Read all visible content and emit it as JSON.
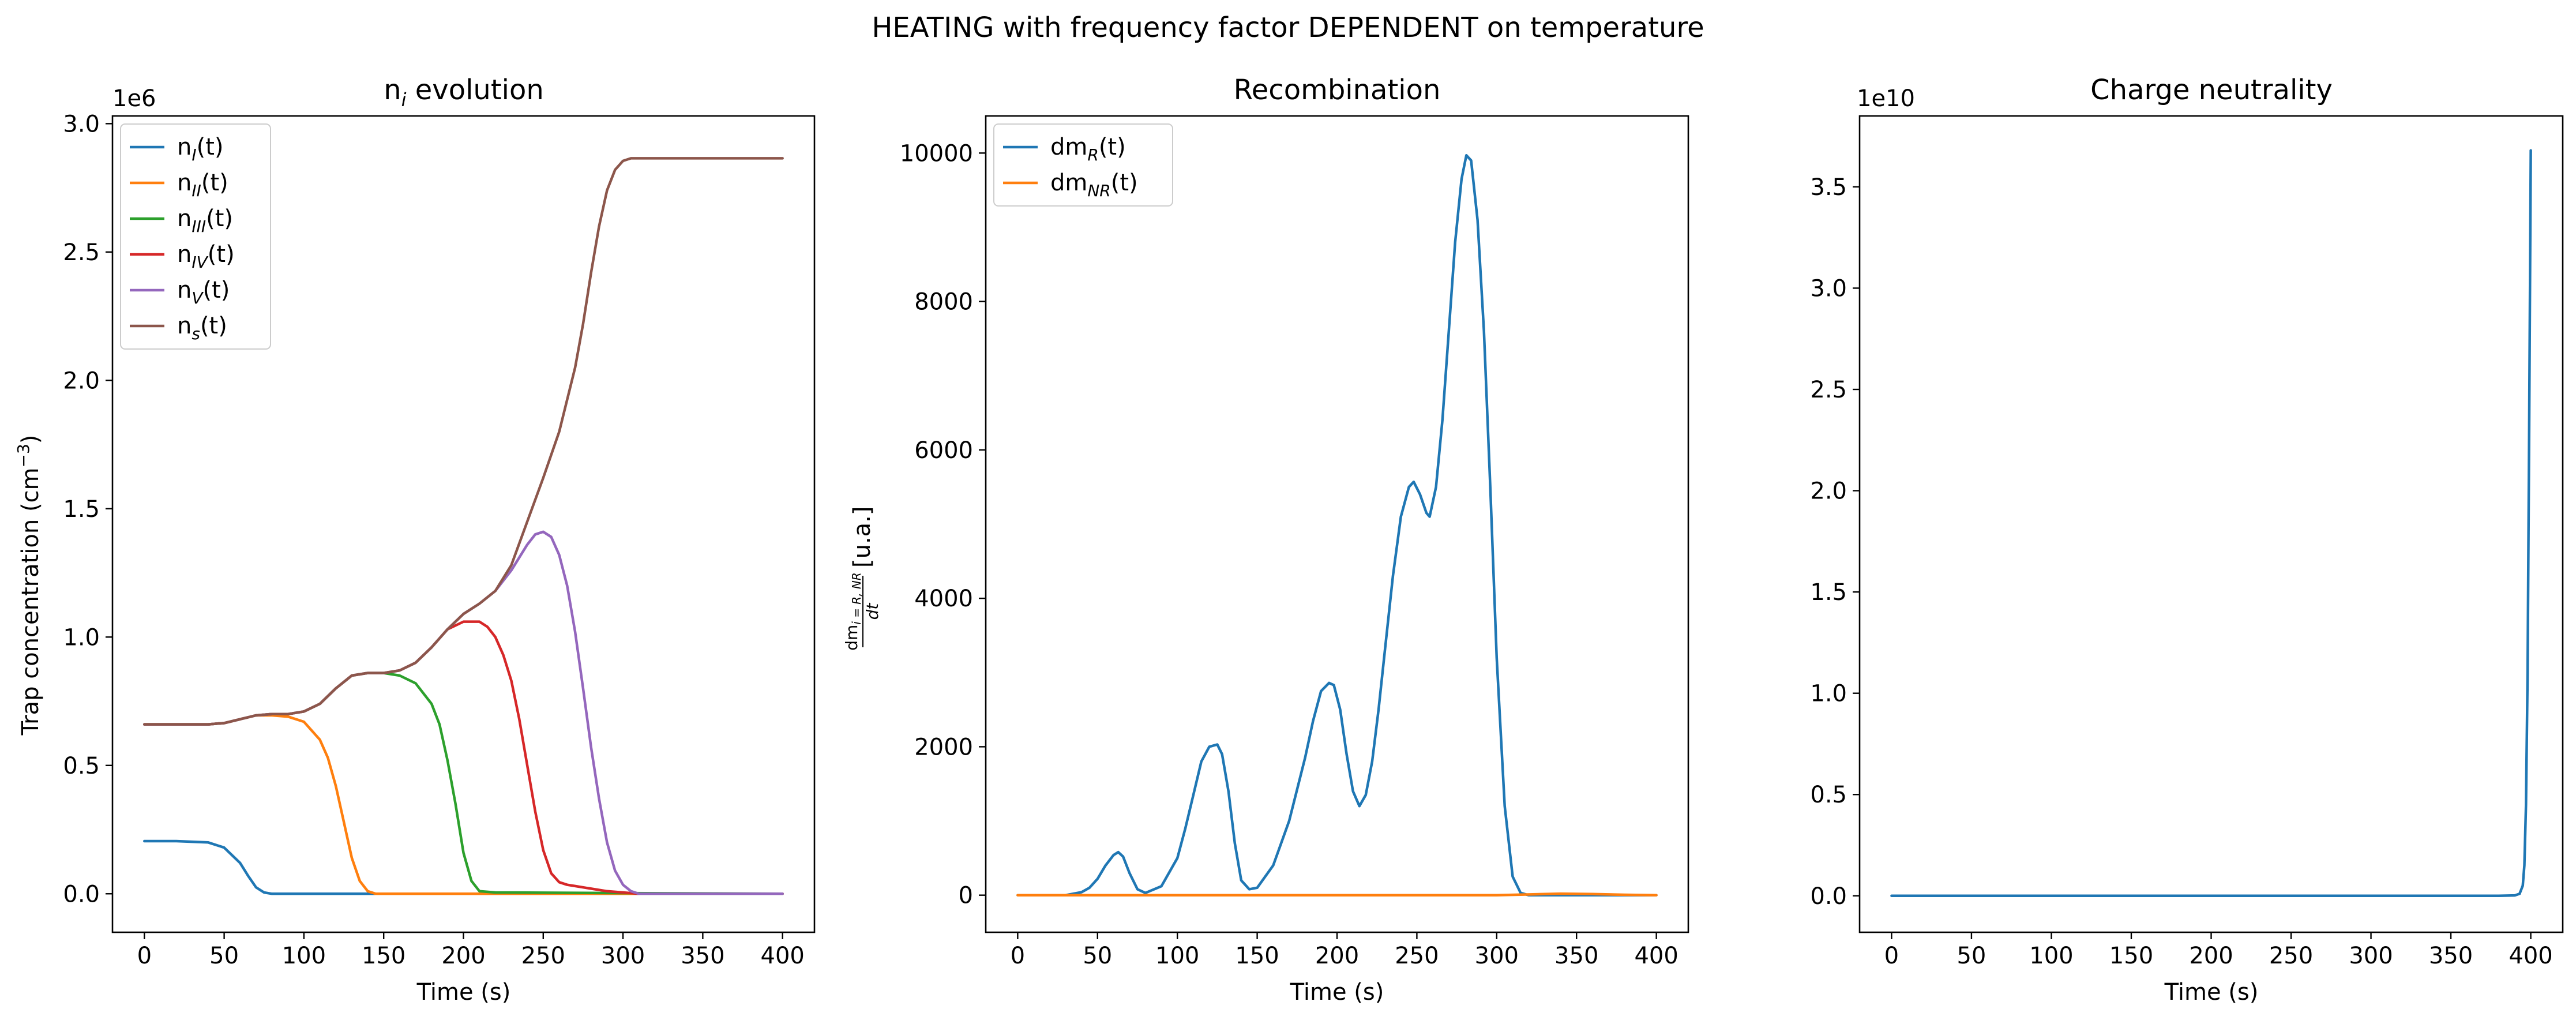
{
  "figure": {
    "title": "HEATING with frequency factor DEPENDENT on temperature"
  },
  "colors": {
    "C0": "#1f77b4",
    "C1": "#ff7f0e",
    "C2": "#2ca02c",
    "C3": "#d62728",
    "C4": "#9467bd",
    "C5": "#8c564b"
  },
  "chart_data": [
    {
      "type": "line",
      "title_main": "n",
      "title_sub": "i",
      "title_tail": " evolution",
      "xlabel": "Time (s)",
      "ylabel_main": "Trap concentration (cm",
      "ylabel_sup": "−3",
      "ylabel_tail": ")",
      "offset_text": "1e6",
      "xlim": [
        -20,
        420
      ],
      "ylim": [
        -0.15,
        3.03
      ],
      "xticks": [
        0,
        50,
        100,
        150,
        200,
        250,
        300,
        350,
        400
      ],
      "xtick_labels": [
        "0",
        "50",
        "100",
        "150",
        "200",
        "250",
        "300",
        "350",
        "400"
      ],
      "yticks": [
        0,
        0.5,
        1.0,
        1.5,
        2.0,
        2.5,
        3.0
      ],
      "ytick_labels": [
        "0.0",
        "0.5",
        "1.0",
        "1.5",
        "2.0",
        "2.5",
        "3.0"
      ],
      "legend_position": "upper-left",
      "series": [
        {
          "label_main": "n",
          "label_sub": "I",
          "label_tail": "(t)",
          "color": "C0",
          "x": [
            0,
            20,
            40,
            50,
            60,
            65,
            70,
            75,
            80,
            100,
            400
          ],
          "y": [
            0.205,
            0.205,
            0.2,
            0.18,
            0.12,
            0.07,
            0.025,
            0.005,
            0,
            0,
            0
          ]
        },
        {
          "label_main": "n",
          "label_sub": "II",
          "label_tail": "(t)",
          "color": "C1",
          "x": [
            0,
            40,
            50,
            60,
            70,
            80,
            90,
            100,
            110,
            115,
            120,
            125,
            130,
            135,
            140,
            145,
            150,
            400
          ],
          "y": [
            0.66,
            0.66,
            0.665,
            0.68,
            0.695,
            0.695,
            0.69,
            0.67,
            0.6,
            0.53,
            0.42,
            0.28,
            0.14,
            0.05,
            0.01,
            0,
            0,
            0
          ]
        },
        {
          "label_main": "n",
          "label_sub": "III",
          "label_tail": "(t)",
          "color": "C2",
          "x": [
            0,
            40,
            50,
            60,
            70,
            80,
            90,
            100,
            110,
            120,
            130,
            140,
            150,
            160,
            170,
            180,
            185,
            190,
            195,
            200,
            205,
            210,
            220,
            400
          ],
          "y": [
            0.66,
            0.66,
            0.665,
            0.68,
            0.695,
            0.7,
            0.7,
            0.71,
            0.74,
            0.8,
            0.85,
            0.86,
            0.86,
            0.85,
            0.82,
            0.74,
            0.66,
            0.52,
            0.35,
            0.16,
            0.05,
            0.01,
            0.005,
            0
          ]
        },
        {
          "label_main": "n",
          "label_sub": "IV",
          "label_tail": "(t)",
          "color": "C3",
          "x": [
            0,
            40,
            50,
            60,
            70,
            80,
            90,
            100,
            110,
            120,
            130,
            140,
            150,
            160,
            170,
            180,
            190,
            200,
            210,
            215,
            220,
            225,
            230,
            235,
            240,
            245,
            250,
            255,
            260,
            265,
            270,
            280,
            290,
            300,
            310,
            400
          ],
          "y": [
            0.66,
            0.66,
            0.665,
            0.68,
            0.695,
            0.7,
            0.7,
            0.71,
            0.74,
            0.8,
            0.85,
            0.86,
            0.86,
            0.87,
            0.9,
            0.96,
            1.03,
            1.06,
            1.06,
            1.04,
            1.0,
            0.93,
            0.83,
            0.68,
            0.5,
            0.32,
            0.17,
            0.08,
            0.045,
            0.035,
            0.03,
            0.02,
            0.01,
            0.005,
            0,
            0
          ]
        },
        {
          "label_main": "n",
          "label_sub": "V",
          "label_tail": "(t)",
          "color": "C4",
          "x": [
            0,
            40,
            50,
            60,
            70,
            80,
            90,
            100,
            110,
            120,
            130,
            140,
            150,
            160,
            170,
            180,
            190,
            200,
            210,
            220,
            230,
            240,
            245,
            250,
            255,
            260,
            265,
            270,
            275,
            280,
            285,
            290,
            295,
            300,
            305,
            310,
            400
          ],
          "y": [
            0.66,
            0.66,
            0.665,
            0.68,
            0.695,
            0.7,
            0.7,
            0.71,
            0.74,
            0.8,
            0.85,
            0.86,
            0.86,
            0.87,
            0.9,
            0.96,
            1.03,
            1.09,
            1.13,
            1.18,
            1.26,
            1.36,
            1.4,
            1.41,
            1.39,
            1.32,
            1.2,
            1.02,
            0.8,
            0.57,
            0.37,
            0.2,
            0.09,
            0.035,
            0.01,
            0,
            0
          ]
        },
        {
          "label_main": "n",
          "label_sub": "s",
          "label_tail": "(t)",
          "color": "C5",
          "x": [
            0,
            40,
            50,
            60,
            70,
            80,
            90,
            100,
            110,
            120,
            130,
            140,
            150,
            160,
            170,
            180,
            190,
            200,
            210,
            220,
            230,
            240,
            250,
            260,
            270,
            275,
            280,
            285,
            290,
            295,
            300,
            305,
            310,
            320,
            400
          ],
          "y": [
            0.66,
            0.66,
            0.665,
            0.68,
            0.695,
            0.7,
            0.7,
            0.71,
            0.74,
            0.8,
            0.85,
            0.86,
            0.86,
            0.87,
            0.9,
            0.96,
            1.03,
            1.09,
            1.13,
            1.18,
            1.28,
            1.45,
            1.62,
            1.8,
            2.05,
            2.22,
            2.42,
            2.6,
            2.74,
            2.82,
            2.855,
            2.865,
            2.865,
            2.865,
            2.865
          ]
        }
      ]
    },
    {
      "type": "line",
      "title_main": "Recombination",
      "xlabel": "Time (s)",
      "ylabel_frac_num": "dm",
      "ylabel_frac_num_sub": "i = R, NR",
      "ylabel_frac_den": "dt",
      "ylabel_tail": "[u.a.]",
      "xlim": [
        -20,
        420
      ],
      "ylim": [
        -500,
        10500
      ],
      "xticks": [
        0,
        50,
        100,
        150,
        200,
        250,
        300,
        350,
        400
      ],
      "xtick_labels": [
        "0",
        "50",
        "100",
        "150",
        "200",
        "250",
        "300",
        "350",
        "400"
      ],
      "yticks": [
        0,
        2000,
        4000,
        6000,
        8000,
        10000
      ],
      "ytick_labels": [
        "0",
        "2000",
        "4000",
        "6000",
        "8000",
        "10000"
      ],
      "legend_position": "upper-left",
      "series": [
        {
          "label_main": "dm",
          "label_sub": "R",
          "label_tail": "(t)",
          "color": "C0",
          "x": [
            0,
            30,
            40,
            45,
            50,
            55,
            60,
            63,
            66,
            70,
            75,
            80,
            90,
            100,
            105,
            110,
            115,
            120,
            125,
            128,
            132,
            136,
            140,
            145,
            150,
            160,
            170,
            180,
            185,
            190,
            195,
            198,
            202,
            206,
            210,
            214,
            218,
            222,
            226,
            230,
            235,
            240,
            245,
            248,
            252,
            256,
            258,
            262,
            266,
            270,
            274,
            278,
            281,
            284,
            288,
            292,
            296,
            300,
            305,
            310,
            315,
            320,
            400
          ],
          "y": [
            0,
            0,
            40,
            100,
            220,
            400,
            540,
            580,
            520,
            300,
            80,
            30,
            120,
            500,
            900,
            1350,
            1800,
            2000,
            2030,
            1900,
            1400,
            700,
            200,
            80,
            100,
            400,
            1000,
            1850,
            2350,
            2750,
            2860,
            2830,
            2500,
            1900,
            1400,
            1200,
            1350,
            1800,
            2500,
            3300,
            4300,
            5100,
            5500,
            5570,
            5400,
            5150,
            5100,
            5500,
            6400,
            7600,
            8800,
            9650,
            9970,
            9900,
            9100,
            7600,
            5500,
            3200,
            1200,
            250,
            30,
            0,
            0
          ]
        },
        {
          "label_main": "dm",
          "label_sub": "NR",
          "label_tail": "(t)",
          "color": "C1",
          "x": [
            0,
            100,
            200,
            300,
            340,
            360,
            380,
            400
          ],
          "y": [
            0,
            0,
            0,
            0,
            20,
            15,
            5,
            0
          ]
        }
      ]
    },
    {
      "type": "line",
      "title_main": "Charge neutrality",
      "xlabel": "Time (s)",
      "offset_text": "1e10",
      "xlim": [
        -20,
        420
      ],
      "ylim": [
        -0.18,
        3.85
      ],
      "xticks": [
        0,
        50,
        100,
        150,
        200,
        250,
        300,
        350,
        400
      ],
      "xtick_labels": [
        "0",
        "50",
        "100",
        "150",
        "200",
        "250",
        "300",
        "350",
        "400"
      ],
      "yticks": [
        0,
        0.5,
        1.0,
        1.5,
        2.0,
        2.5,
        3.0,
        3.5
      ],
      "ytick_labels": [
        "0.0",
        "0.5",
        "1.0",
        "1.5",
        "2.0",
        "2.5",
        "3.0",
        "3.5"
      ],
      "series": [
        {
          "color": "C0",
          "x": [
            0,
            100,
            200,
            300,
            380,
            390,
            393,
            395,
            396,
            397,
            398,
            399,
            400
          ],
          "y": [
            0,
            0,
            0,
            0,
            0,
            0.002,
            0.01,
            0.05,
            0.15,
            0.45,
            1.1,
            2.3,
            3.68
          ]
        }
      ]
    }
  ]
}
